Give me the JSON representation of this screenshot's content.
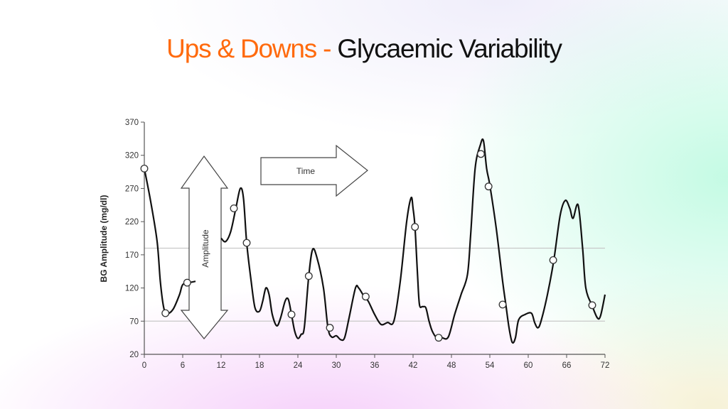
{
  "title": {
    "part1": "Ups & Downs - ",
    "part2": "Glycaemic Variability",
    "part1_color": "#ff6a0d",
    "part2_color": "#111111"
  },
  "chart_data": {
    "type": "line",
    "title": "Ups & Downs - Glycaemic Variability",
    "xlabel": "",
    "ylabel": "BG Amplitude (mg/dl)",
    "xlim": [
      0,
      72
    ],
    "ylim": [
      20,
      370
    ],
    "xticks": [
      0,
      6,
      12,
      18,
      24,
      30,
      36,
      42,
      48,
      54,
      60,
      66,
      72
    ],
    "yticks": [
      20,
      70,
      120,
      170,
      220,
      270,
      320,
      370
    ],
    "grid": false,
    "reference_lines": [
      180,
      70
    ],
    "annotations": {
      "amplitude": "Amplitude",
      "time": "Time"
    },
    "segments": [
      [
        [
          0,
          300
        ],
        [
          1,
          250
        ],
        [
          2,
          190
        ],
        [
          2.5,
          130
        ],
        [
          3,
          92
        ],
        [
          3.5,
          81
        ],
        [
          4.5,
          88
        ],
        [
          5.5,
          110
        ],
        [
          6,
          125
        ],
        [
          7,
          128
        ],
        [
          8,
          130
        ]
      ],
      [
        [
          12,
          195
        ],
        [
          12.7,
          190
        ],
        [
          13.5,
          205
        ],
        [
          14.3,
          240
        ],
        [
          15,
          270
        ],
        [
          15.5,
          255
        ],
        [
          16,
          188
        ],
        [
          16.7,
          130
        ],
        [
          17.3,
          90
        ],
        [
          18,
          85
        ],
        [
          18.5,
          100
        ],
        [
          19,
          120
        ],
        [
          19.5,
          110
        ],
        [
          20,
          80
        ],
        [
          20.7,
          63
        ],
        [
          21.3,
          75
        ],
        [
          22,
          100
        ],
        [
          22.5,
          103
        ],
        [
          23,
          80
        ],
        [
          23.5,
          55
        ],
        [
          24,
          44
        ],
        [
          24.5,
          50
        ],
        [
          25,
          60
        ],
        [
          25.7,
          138
        ],
        [
          26.3,
          178
        ],
        [
          27,
          165
        ],
        [
          28,
          120
        ],
        [
          28.7,
          60
        ],
        [
          29.3,
          46
        ],
        [
          30,
          48
        ],
        [
          30.7,
          42
        ],
        [
          31.3,
          45
        ],
        [
          32,
          75
        ],
        [
          33,
          120
        ],
        [
          33.5,
          120
        ],
        [
          34.3,
          108
        ],
        [
          35,
          100
        ],
        [
          36,
          80
        ],
        [
          37,
          65
        ],
        [
          38,
          68
        ],
        [
          39,
          70
        ],
        [
          40,
          130
        ],
        [
          41,
          220
        ],
        [
          41.7,
          256
        ],
        [
          42,
          240
        ],
        [
          42.3,
          212
        ],
        [
          42.7,
          140
        ],
        [
          43,
          95
        ],
        [
          43.5,
          92
        ],
        [
          44,
          90
        ],
        [
          44.5,
          70
        ],
        [
          45,
          55
        ],
        [
          45.7,
          45
        ],
        [
          46.5,
          45
        ],
        [
          47.5,
          46
        ],
        [
          48.5,
          80
        ],
        [
          49.5,
          110
        ],
        [
          50.5,
          140
        ],
        [
          51,
          200
        ],
        [
          51.7,
          300
        ],
        [
          52.5,
          335
        ],
        [
          53,
          342
        ],
        [
          53.5,
          300
        ],
        [
          54,
          275
        ],
        [
          55,
          210
        ],
        [
          56,
          130
        ],
        [
          56.5,
          95
        ],
        [
          57,
          60
        ],
        [
          57.5,
          38
        ],
        [
          58,
          45
        ],
        [
          58.5,
          72
        ],
        [
          59.5,
          80
        ],
        [
          60.5,
          82
        ],
        [
          61,
          68
        ],
        [
          61.5,
          60
        ],
        [
          62,
          70
        ],
        [
          63,
          110
        ],
        [
          64,
          162
        ],
        [
          65,
          230
        ],
        [
          65.8,
          252
        ],
        [
          66.5,
          240
        ],
        [
          67,
          225
        ],
        [
          67.8,
          245
        ],
        [
          68.5,
          180
        ],
        [
          69,
          120
        ],
        [
          70,
          93
        ],
        [
          70.8,
          75
        ],
        [
          71.3,
          78
        ],
        [
          72,
          110
        ]
      ]
    ],
    "markers": [
      [
        0,
        300
      ],
      [
        3.3,
        82
      ],
      [
        6.7,
        128
      ],
      [
        14,
        240
      ],
      [
        16,
        188
      ],
      [
        23,
        80
      ],
      [
        25.7,
        138
      ],
      [
        29,
        60
      ],
      [
        34.6,
        107
      ],
      [
        42.3,
        212
      ],
      [
        46,
        45
      ],
      [
        52.6,
        322
      ],
      [
        53.8,
        273
      ],
      [
        56,
        95
      ],
      [
        63.9,
        162
      ],
      [
        70,
        94
      ]
    ]
  }
}
